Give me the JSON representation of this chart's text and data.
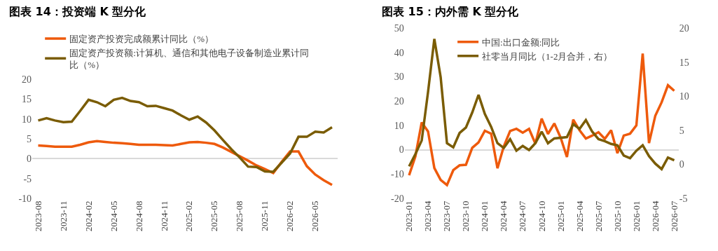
{
  "chart_data": [
    {
      "type": "line",
      "title": "图表 14：投资端 K 型分化",
      "categories": [
        "2023-08",
        null,
        null,
        "2023-11",
        null,
        null,
        "2024-02",
        null,
        null,
        "2024-05",
        null,
        null,
        "2024-08",
        null,
        null,
        "2024-11",
        null,
        null,
        "2025-02",
        null,
        null,
        "2025-05",
        null,
        null,
        "2025-08",
        null,
        null,
        "2025-11",
        null,
        null,
        "2026-02",
        null,
        null,
        "2026-05",
        null,
        null
      ],
      "series": [
        {
          "name": "固定资产投资完成额累计同比（%）",
          "color": "#ee5a0c",
          "values": [
            3.3,
            3.2,
            3.0,
            3.0,
            3.0,
            3.5,
            4.1,
            4.4,
            4.2,
            4.0,
            3.9,
            3.7,
            3.5,
            3.5,
            3.5,
            3.4,
            3.3,
            3.7,
            4.1,
            4.2,
            4.0,
            3.7,
            2.8,
            1.7,
            0.6,
            -0.5,
            -1.7,
            -2.6,
            -3.6,
            -0.8,
            1.8,
            1.8,
            -1.9,
            -4.0,
            -5.4,
            -6.6
          ]
        },
        {
          "name": "固定资产投资额:计算机、通信和其他电子设备制造业累计同比（%）",
          "color": "#7a5c04",
          "values": [
            9.6,
            10.2,
            9.6,
            9.2,
            9.3,
            12.0,
            14.8,
            14.2,
            13.2,
            14.8,
            15.3,
            14.5,
            14.2,
            13.2,
            13.3,
            12.7,
            12.1,
            10.9,
            9.8,
            10.6,
            9.1,
            7.1,
            4.7,
            2.4,
            0.3,
            -2.0,
            -2.1,
            -3.2,
            -3.3,
            -1.0,
            1.3,
            5.5,
            5.5,
            6.8,
            6.6,
            7.9
          ]
        }
      ],
      "ylim": [
        -10,
        20
      ],
      "yticks": [
        -10,
        -5,
        0,
        5,
        10,
        15,
        20
      ],
      "legend": "top left"
    },
    {
      "type": "line",
      "title": "图表 15：内外需 K 型分化",
      "categories": [
        "2023-01",
        null,
        null,
        "2023-04",
        null,
        null,
        "2023-07",
        null,
        null,
        "2023-10",
        null,
        null,
        "2024-01",
        null,
        null,
        "2024-04",
        null,
        null,
        "2024-07",
        null,
        null,
        "2024-10",
        null,
        null,
        "2025-01",
        null,
        null,
        "2025-04",
        null,
        null,
        "2025-07",
        null,
        null,
        "2025-10",
        null,
        null,
        "2026-01",
        null,
        null,
        "2026-04",
        null,
        null,
        "2026-07"
      ],
      "series": [
        {
          "name": "中国:出口金额:同比",
          "color": "#ee5a0c",
          "values": [
            -10.5,
            -2.7,
            11.2,
            7.5,
            -7.5,
            -12.4,
            -14.5,
            -8.4,
            -6.4,
            -6.2,
            0.8,
            3.0,
            7.8,
            6.6,
            -7.6,
            1.4,
            7.7,
            8.6,
            7.0,
            8.6,
            2.5,
            12.8,
            6.5,
            10.8,
            5.0,
            -3.0,
            12.4,
            8.0,
            4.6,
            5.8,
            7.2,
            4.5,
            8.0,
            -1.4,
            5.8,
            6.6,
            10.0,
            39.5,
            2.7,
            14.0,
            19.5,
            26.5,
            24.2
          ]
        },
        {
          "name": "社零当月同比（1-2月合并，右）",
          "color": "#7a5c04",
          "axis": "y2",
          "values": [
            -0.3,
            1.5,
            3.5,
            10.6,
            18.4,
            12.8,
            3.1,
            2.5,
            4.6,
            5.4,
            7.6,
            10.2,
            7.4,
            5.5,
            3.1,
            2.4,
            3.7,
            2.0,
            2.7,
            2.1,
            3.1,
            4.8,
            3.1,
            3.8,
            3.9,
            4.0,
            5.9,
            5.2,
            6.5,
            4.8,
            3.7,
            3.4,
            3.0,
            2.8,
            1.3,
            0.9,
            2.0,
            2.8,
            1.2,
            0.1,
            -0.7,
            1.0,
            0.6
          ]
        }
      ],
      "ylim": [
        -20,
        50
      ],
      "yticks": [
        -20,
        -10,
        0,
        10,
        20,
        30,
        40,
        50
      ],
      "y2lim": [
        -5,
        20
      ],
      "y2ticks": [
        -5,
        0,
        5,
        10,
        15,
        20
      ],
      "legend": "top"
    }
  ]
}
